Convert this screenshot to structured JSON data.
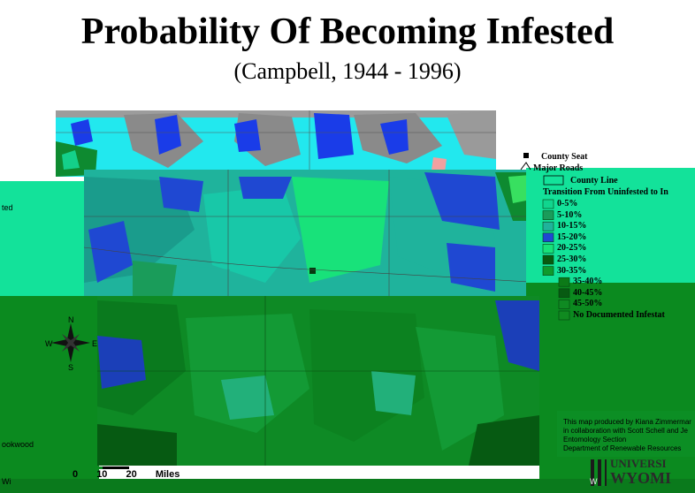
{
  "title": "Probability Of Becoming Infested",
  "subtitle": "(Campbell, 1944 - 1996)",
  "legend": {
    "county_seat": "County Seat",
    "major_roads": "Major Roads",
    "county_line": "County Line",
    "heading": "Transition From Uninfested to In",
    "classes": [
      {
        "label": "0-5%",
        "color": "#11d58e"
      },
      {
        "label": "5-10%",
        "color": "#1a9c5a"
      },
      {
        "label": "10-15%",
        "color": "#1fb39c"
      },
      {
        "label": "15-20%",
        "color": "#1f48d2"
      },
      {
        "label": "20-25%",
        "color": "#18e27a"
      },
      {
        "label": "25-30%",
        "color": "#085a10"
      },
      {
        "label": "30-35%",
        "color": "#0f9a2c"
      },
      {
        "label": "35-40%",
        "color": "#0c7a18"
      },
      {
        "label": "40-45%",
        "color": "#075a12"
      },
      {
        "label": "45-50%",
        "color": "#0f8a22"
      },
      {
        "label": "No Documented Infestat",
        "color": "#108a20"
      }
    ]
  },
  "side_labels": {
    "left_top": "ted",
    "left_bottom": "ookwood",
    "left_corner": "Wi"
  },
  "compass": {
    "n": "N",
    "s": "S",
    "e": "E",
    "w": "W"
  },
  "scale_labels": [
    "0",
    "10",
    "20",
    "Miles"
  ],
  "credit_lines": [
    "This map produced by Kiana Zimmermar",
    "in collaboration with Scott Schell and Je",
    "Entomology Section",
    "Department of Renewable Resources"
  ],
  "university": {
    "line1": "UNIVERSI",
    "line2": "WYOMI",
    "emblem": "W"
  },
  "colors": {
    "band_top": "#13e29a",
    "band_bottom": "#0b8a1f",
    "upper_map_blue": "#1a3ce8",
    "upper_map_cyan": "#22e8ee",
    "upper_map_gray": "#8a8a8a"
  }
}
